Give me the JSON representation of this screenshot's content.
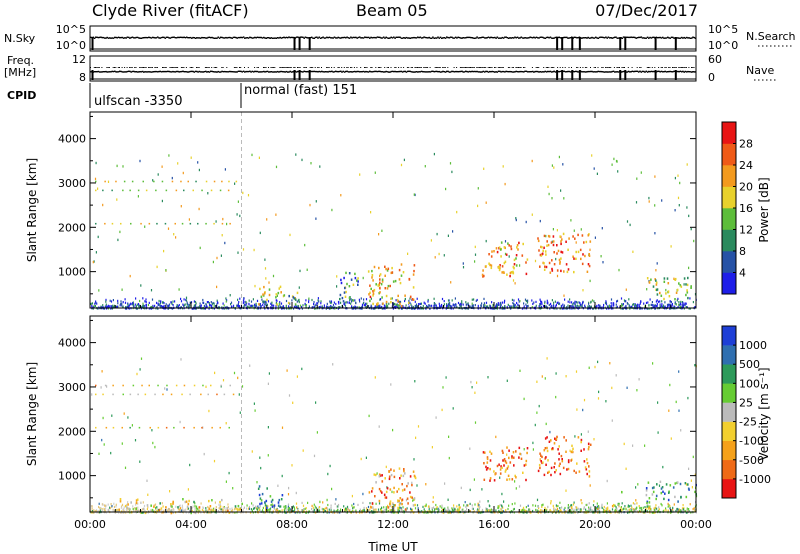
{
  "header": {
    "station": "Clyde River (fitACF)",
    "beam": "Beam 05",
    "date": "07/Dec/2017"
  },
  "strips": {
    "nsky_label": "N.Sky",
    "freq_label_1": "Freq.",
    "freq_label_2": "[MHz]",
    "cpid_label": "CPID",
    "nsearch_label": "N.Search",
    "nave_label": "Nave",
    "left_ticks_top": [
      "10^5",
      "10^0"
    ],
    "left_ticks_freq": [
      "12",
      "8"
    ],
    "right_ticks_top": [
      "10^5",
      "10^0"
    ],
    "right_ticks_freq": [
      "60",
      "0"
    ],
    "cpid_segments": [
      {
        "label": "ulfscan -3350",
        "start_hour": 0,
        "end_hour": 6
      },
      {
        "label": "normal (fast) 151",
        "start_hour": 6,
        "end_hour": 24
      }
    ]
  },
  "panels": {
    "ylabel": "Slant Range [km]",
    "xlabel": "Time UT",
    "power_label": "Power [dB]",
    "velocity_label": "Velocity [m s⁻¹]"
  },
  "chart_data": [
    {
      "type": "heatmap",
      "name": "power",
      "x_unit": "hour UT",
      "xlim": [
        0,
        24
      ],
      "xticks": [
        "00:00",
        "04:00",
        "08:00",
        "12:00",
        "16:00",
        "20:00",
        "00:00"
      ],
      "ylim": [
        180,
        4600
      ],
      "yticks": [
        1000,
        2000,
        3000,
        4000
      ],
      "colorbar": {
        "label": "Power [dB]",
        "range": [
          0,
          32
        ],
        "ticks": [
          4,
          8,
          12,
          16,
          20,
          24,
          28
        ],
        "colors": [
          "#1e1ee8",
          "#2652a6",
          "#2a8a5e",
          "#5dbd3a",
          "#e8d12c",
          "#f39a1e",
          "#ef5a17",
          "#e81414"
        ]
      },
      "patches": [
        {
          "t": [
            6.6,
            7.6
          ],
          "r": [
            250,
            700
          ],
          "level": 0.55
        },
        {
          "t": [
            7.6,
            8.3
          ],
          "r": [
            250,
            550
          ],
          "level": 0.4
        },
        {
          "t": [
            9.8,
            10.6
          ],
          "r": [
            300,
            1100
          ],
          "level": 0.3
        },
        {
          "t": [
            11.0,
            12.9
          ],
          "r": [
            250,
            1200
          ],
          "level": 0.65
        },
        {
          "t": [
            15.5,
            17.3
          ],
          "r": [
            900,
            1700
          ],
          "level": 0.7
        },
        {
          "t": [
            17.7,
            19.8
          ],
          "r": [
            1000,
            1900
          ],
          "level": 0.75
        },
        {
          "t": [
            22.0,
            24.0
          ],
          "r": [
            400,
            900
          ],
          "level": 0.45
        }
      ]
    },
    {
      "type": "heatmap",
      "name": "velocity",
      "x_unit": "hour UT",
      "xlim": [
        0,
        24
      ],
      "xticks": [
        "00:00",
        "04:00",
        "08:00",
        "12:00",
        "16:00",
        "20:00",
        "00:00"
      ],
      "ylim": [
        180,
        4600
      ],
      "yticks": [
        1000,
        2000,
        3000,
        4000
      ],
      "colorbar": {
        "label": "Velocity [m s-1]",
        "ticks": [
          "1000",
          "500",
          "100",
          "25",
          "-25",
          "-100",
          "-500",
          "-1000"
        ],
        "colors": [
          "#1e3fd6",
          "#2f6fb0",
          "#2d9a5a",
          "#66cc33",
          "#bbbbbb",
          "#f2cf2f",
          "#f5a11a",
          "#ef6a17",
          "#e81414"
        ]
      },
      "patches": [
        {
          "t": [
            1.0,
            6.0
          ],
          "r": [
            180,
            500
          ],
          "level": 0.55
        },
        {
          "t": [
            6.6,
            7.6
          ],
          "r": [
            300,
            800
          ],
          "level": 0.2
        },
        {
          "t": [
            11.0,
            12.9
          ],
          "r": [
            250,
            1200
          ],
          "level": 0.75
        },
        {
          "t": [
            15.5,
            17.3
          ],
          "r": [
            900,
            1700
          ],
          "level": 0.8
        },
        {
          "t": [
            17.7,
            19.8
          ],
          "r": [
            1000,
            1900
          ],
          "level": 0.8
        },
        {
          "t": [
            22.0,
            24.0
          ],
          "r": [
            400,
            900
          ],
          "level": 0.3
        }
      ]
    }
  ]
}
